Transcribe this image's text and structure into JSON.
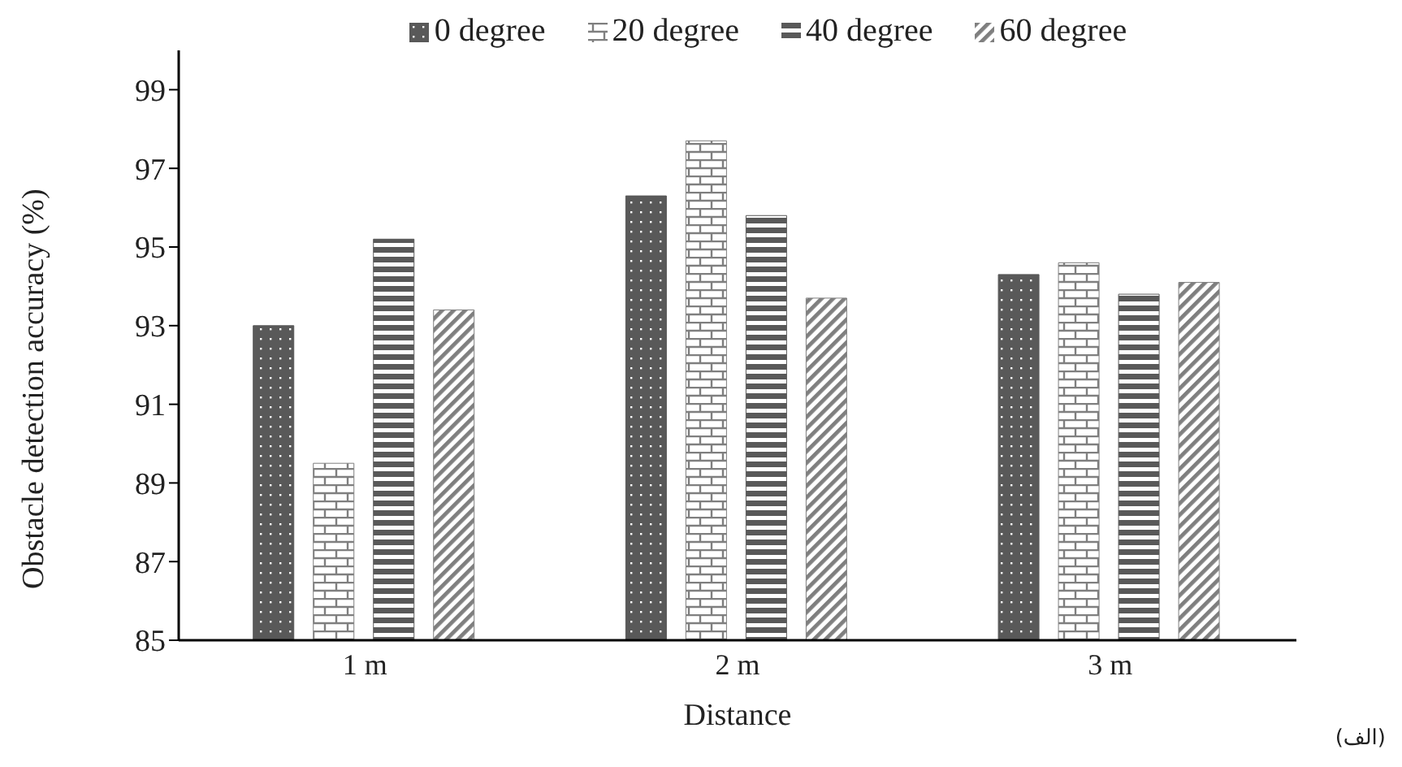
{
  "chart_data": {
    "type": "bar",
    "xlabel": "Distance",
    "ylabel": "Obstacle detection accuracy (%)",
    "categories": [
      "1 m",
      "2 m",
      "3 m"
    ],
    "series": [
      {
        "name": "0 degree",
        "color": "#595959",
        "values": [
          93.0,
          96.3,
          94.3
        ]
      },
      {
        "name": "20 degree",
        "color": "#7f7f7f",
        "values": [
          89.5,
          97.7,
          94.6
        ]
      },
      {
        "name": "40 degree",
        "color": "#595959",
        "values": [
          95.2,
          95.8,
          93.8
        ]
      },
      {
        "name": "60 degree",
        "color": "#7f7f7f",
        "values": [
          93.4,
          93.7,
          94.1
        ]
      }
    ],
    "ylim": [
      85,
      100
    ],
    "yticks": [
      85,
      87,
      89,
      91,
      93,
      95,
      97,
      99
    ],
    "grid": false,
    "legend": "top",
    "annotations": [
      "(الف)"
    ]
  }
}
